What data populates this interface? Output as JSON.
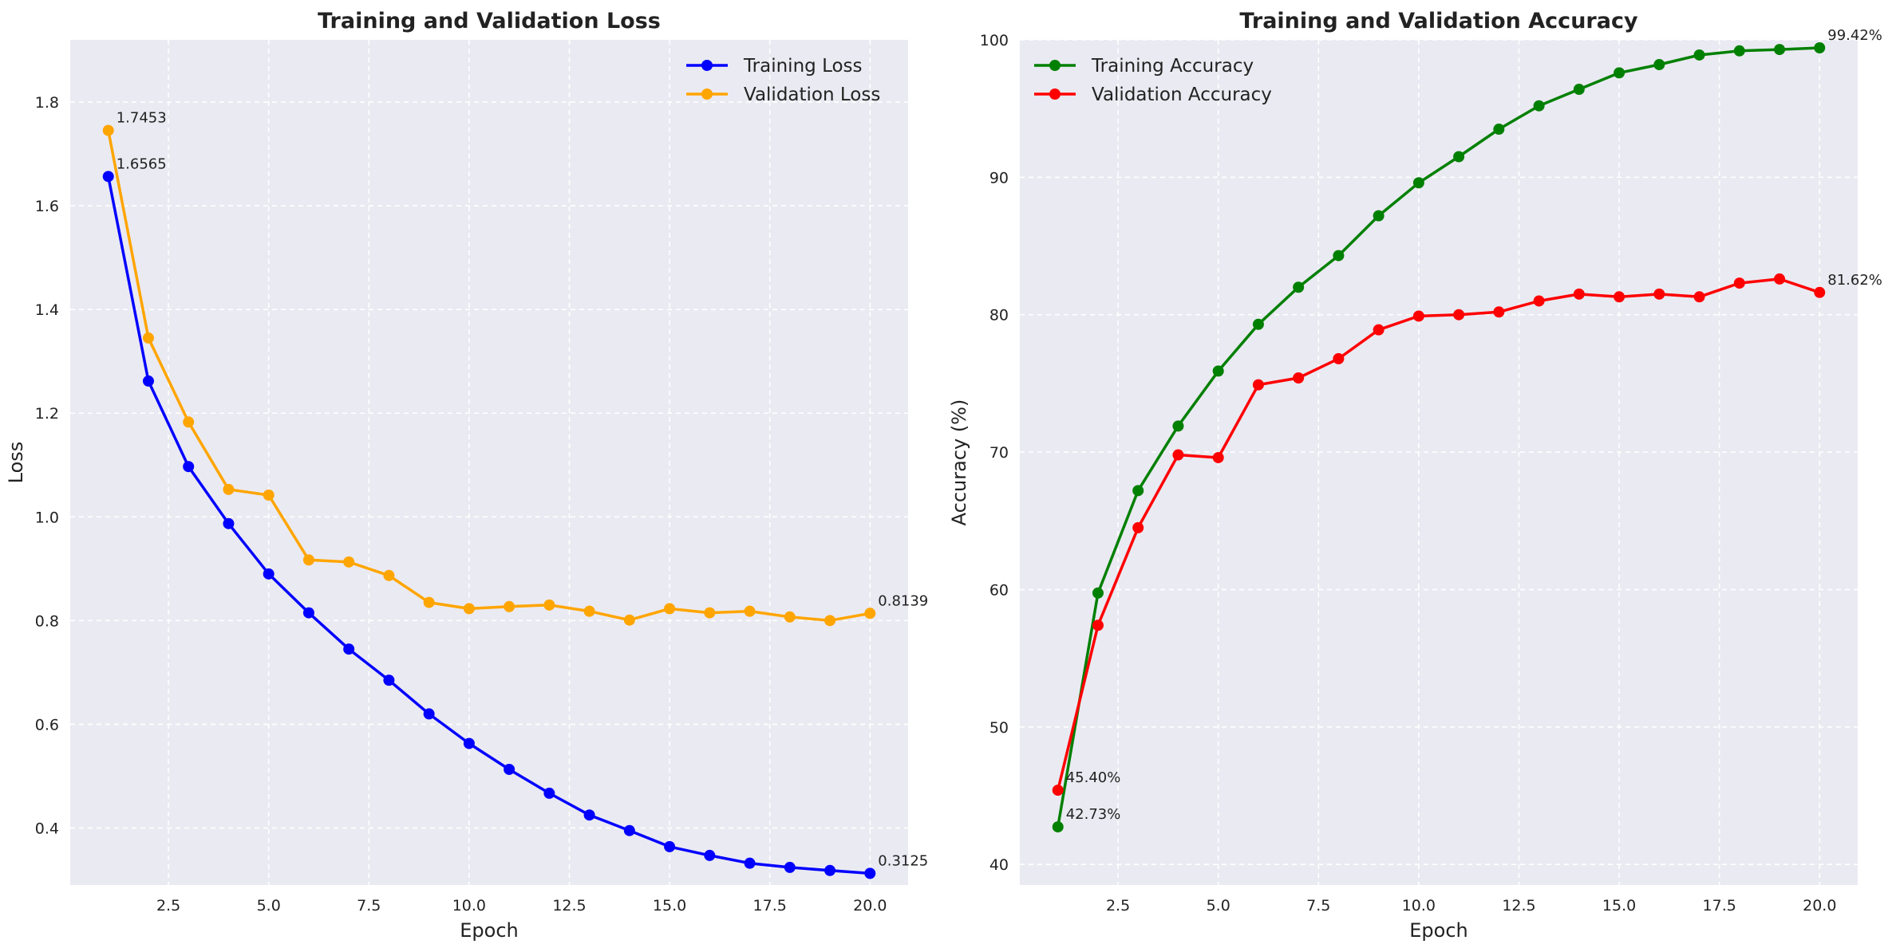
{
  "chart_data": [
    {
      "type": "line",
      "title": "Training and Validation Loss",
      "xlabel": "Epoch",
      "ylabel": "Loss",
      "x": [
        1,
        2,
        3,
        4,
        5,
        6,
        7,
        8,
        9,
        10,
        11,
        12,
        13,
        14,
        15,
        16,
        17,
        18,
        19,
        20
      ],
      "xlim": [
        0.05,
        20.95
      ],
      "ylim": [
        0.29,
        1.92
      ],
      "xticks": [
        "2.5",
        "5.0",
        "7.5",
        "10.0",
        "12.5",
        "15.0",
        "17.5",
        "20.0"
      ],
      "yticks": [
        "0.4",
        "0.6",
        "0.8",
        "1.0",
        "1.2",
        "1.4",
        "1.6",
        "1.8"
      ],
      "grid": true,
      "legend_position": "top-right",
      "series": [
        {
          "name": "Training Loss",
          "color": "#0000ff",
          "values": [
            1.6565,
            1.262,
            1.097,
            0.987,
            0.89,
            0.815,
            0.745,
            0.685,
            0.62,
            0.563,
            0.513,
            0.467,
            0.425,
            0.395,
            0.364,
            0.347,
            0.332,
            0.324,
            0.318,
            0.3125
          ]
        },
        {
          "name": "Validation Loss",
          "color": "#ffa500",
          "values": [
            1.7453,
            1.345,
            1.183,
            1.053,
            1.042,
            0.917,
            0.913,
            0.887,
            0.835,
            0.823,
            0.827,
            0.83,
            0.818,
            0.801,
            0.823,
            0.815,
            0.818,
            0.807,
            0.8,
            0.8139
          ]
        }
      ],
      "annotations": [
        {
          "x": 1,
          "y": 1.7453,
          "text": "1.7453"
        },
        {
          "x": 1,
          "y": 1.6565,
          "text": "1.6565"
        },
        {
          "x": 20,
          "y": 0.8139,
          "text": "0.8139"
        },
        {
          "x": 20,
          "y": 0.3125,
          "text": "0.3125"
        }
      ]
    },
    {
      "type": "line",
      "title": "Training and Validation Accuracy",
      "xlabel": "Epoch",
      "ylabel": "Accuracy (%)",
      "x": [
        1,
        2,
        3,
        4,
        5,
        6,
        7,
        8,
        9,
        10,
        11,
        12,
        13,
        14,
        15,
        16,
        17,
        18,
        19,
        20
      ],
      "xlim": [
        0.05,
        20.95
      ],
      "ylim": [
        38.5,
        100
      ],
      "xticks": [
        "2.5",
        "5.0",
        "7.5",
        "10.0",
        "12.5",
        "15.0",
        "17.5",
        "20.0"
      ],
      "yticks": [
        "40",
        "50",
        "60",
        "70",
        "80",
        "90",
        "100"
      ],
      "grid": true,
      "legend_position": "top-left",
      "series": [
        {
          "name": "Training Accuracy",
          "color": "#008000",
          "values": [
            42.73,
            59.75,
            67.2,
            71.9,
            75.9,
            79.3,
            82.0,
            84.3,
            87.2,
            89.6,
            91.5,
            93.5,
            95.2,
            96.4,
            97.6,
            98.2,
            98.9,
            99.2,
            99.3,
            99.42
          ]
        },
        {
          "name": "Validation Accuracy",
          "color": "#ff0000",
          "values": [
            45.4,
            57.4,
            64.5,
            69.8,
            69.6,
            74.9,
            75.4,
            76.8,
            78.9,
            79.9,
            80.0,
            80.2,
            81.0,
            81.5,
            81.3,
            81.5,
            81.3,
            82.3,
            82.6,
            81.62
          ]
        }
      ],
      "annotations": [
        {
          "x": 1,
          "y": 45.4,
          "text": "45.40%"
        },
        {
          "x": 1,
          "y": 42.73,
          "text": "42.73%"
        },
        {
          "x": 20,
          "y": 99.42,
          "text": "99.42%"
        },
        {
          "x": 20,
          "y": 81.62,
          "text": "81.62%"
        }
      ]
    }
  ],
  "colors": {
    "panel_background": "#eaeaf2",
    "grid": "#ffffff",
    "text": "#222222"
  }
}
